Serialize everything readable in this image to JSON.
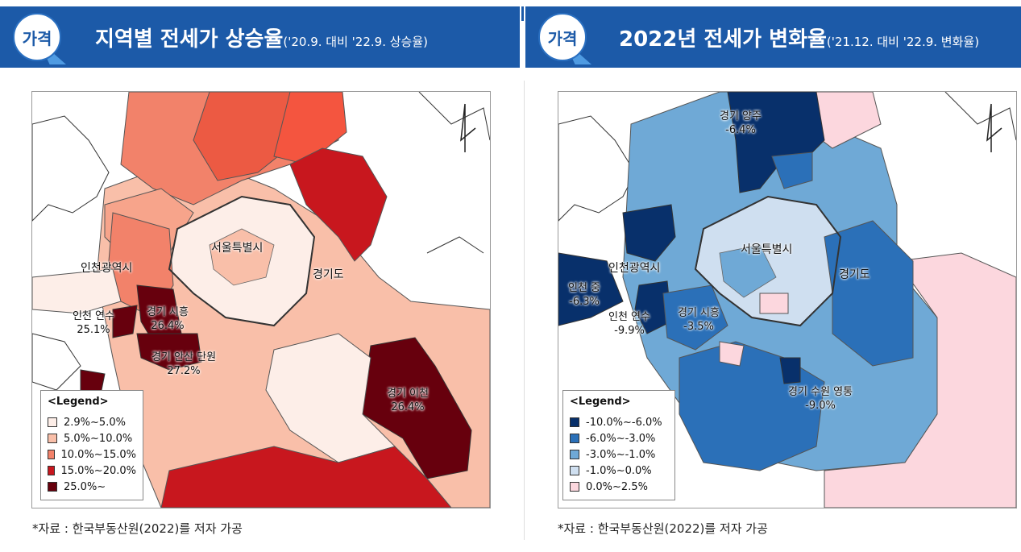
{
  "left_panel": {
    "badge": "가격",
    "title": "지역별 전세가 상승율",
    "subtitle": "('20.9. 대비 '22.9. 상승율)",
    "map_labels": {
      "seoul": "서울특별시",
      "gyeonggi": "경기도",
      "incheon": "인천광역시",
      "yeonsu_name": "인천 연수",
      "yeonsu_value": "25.1%",
      "siheung_name": "경기 시흥",
      "siheung_value": "26.4%",
      "ansan_name": "경기 안산 단원",
      "ansan_value": "27.2%",
      "icheon_name": "경기 이천",
      "icheon_value": "26.4%"
    },
    "legend": {
      "title": "<Legend>",
      "items": [
        {
          "label": "2.9%~5.0%",
          "color": "#fdeee8"
        },
        {
          "label": "5.0%~10.0%",
          "color": "#f9bfa9"
        },
        {
          "label": "10.0%~15.0%",
          "color": "#f2826a"
        },
        {
          "label": "15.0%~20.0%",
          "color": "#c8171e"
        },
        {
          "label": "25.0%~",
          "color": "#67000d"
        }
      ]
    },
    "source": "*자료 : 한국부동산원(2022)를 저자 가공"
  },
  "right_panel": {
    "badge": "가격",
    "title": "2022년 전세가 변화율",
    "subtitle": "('21.12. 대비 '22.9. 변화율)",
    "map_labels": {
      "seoul": "서울특별시",
      "gyeonggi": "경기도",
      "incheon": "인천광역시",
      "yangju_name": "경기 양주",
      "yangju_value": "-6.4%",
      "jung_name": "인천 중",
      "jung_value": "-6.3%",
      "yeonsu_name": "인천 연수",
      "yeonsu_value": "-9.9%",
      "siheung_name": "경기 시흥",
      "siheung_value": "-3.5%",
      "suwon_name": "경기 수원 영통",
      "suwon_value": "-9.0%"
    },
    "legend": {
      "title": "<Legend>",
      "items": [
        {
          "label": "-10.0%~-6.0%",
          "color": "#08306b"
        },
        {
          "label": "-6.0%~-3.0%",
          "color": "#2b70b8"
        },
        {
          "label": "-3.0%~-1.0%",
          "color": "#6fa9d6"
        },
        {
          "label": "-1.0%~0.0%",
          "color": "#cfdff0"
        },
        {
          "label": "0.0%~2.5%",
          "color": "#fcd7de"
        }
      ]
    },
    "source": "*자료 : 한국부동산원(2022)를 저자 가공"
  }
}
